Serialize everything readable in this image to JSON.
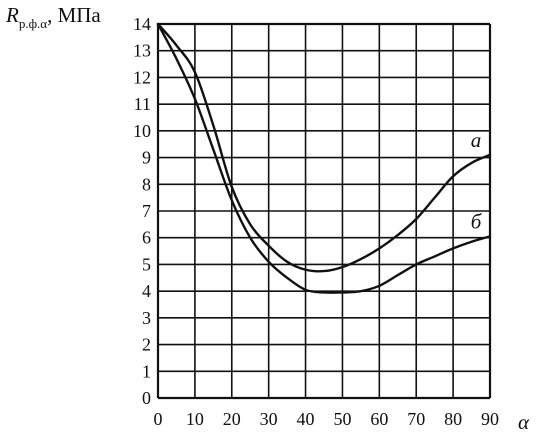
{
  "chart_data": {
    "type": "line",
    "xlabel": "α",
    "ylabel": {
      "symbol": "R",
      "subscript": "р.ф.α",
      "unit": ", МПа"
    },
    "xlim": [
      0,
      90
    ],
    "ylim": [
      0,
      14
    ],
    "x_ticks": [
      0,
      10,
      20,
      30,
      40,
      50,
      60,
      70,
      80,
      90
    ],
    "y_ticks": [
      0,
      1,
      2,
      3,
      4,
      5,
      6,
      7,
      8,
      9,
      10,
      11,
      12,
      13,
      14
    ],
    "grid": true,
    "series": [
      {
        "name": "а",
        "x": [
          0,
          5,
          10,
          15,
          20,
          25,
          30,
          35,
          40,
          45,
          50,
          55,
          60,
          65,
          70,
          75,
          80,
          85,
          90
        ],
        "y": [
          14,
          13.2,
          12.2,
          10.2,
          7.9,
          6.5,
          5.7,
          5.1,
          4.8,
          4.75,
          4.9,
          5.2,
          5.6,
          6.1,
          6.7,
          7.5,
          8.3,
          8.8,
          9.1
        ]
      },
      {
        "name": "б",
        "x": [
          0,
          5,
          10,
          15,
          20,
          25,
          30,
          35,
          40,
          45,
          50,
          55,
          60,
          65,
          70,
          75,
          80,
          85,
          90
        ],
        "y": [
          14,
          12.7,
          11.2,
          9.3,
          7.4,
          6.0,
          5.1,
          4.5,
          4.05,
          3.95,
          3.95,
          4.0,
          4.2,
          4.6,
          5.0,
          5.3,
          5.6,
          5.85,
          6.05
        ]
      }
    ],
    "colors": {
      "line": "#111111",
      "grid": "#111111"
    }
  }
}
